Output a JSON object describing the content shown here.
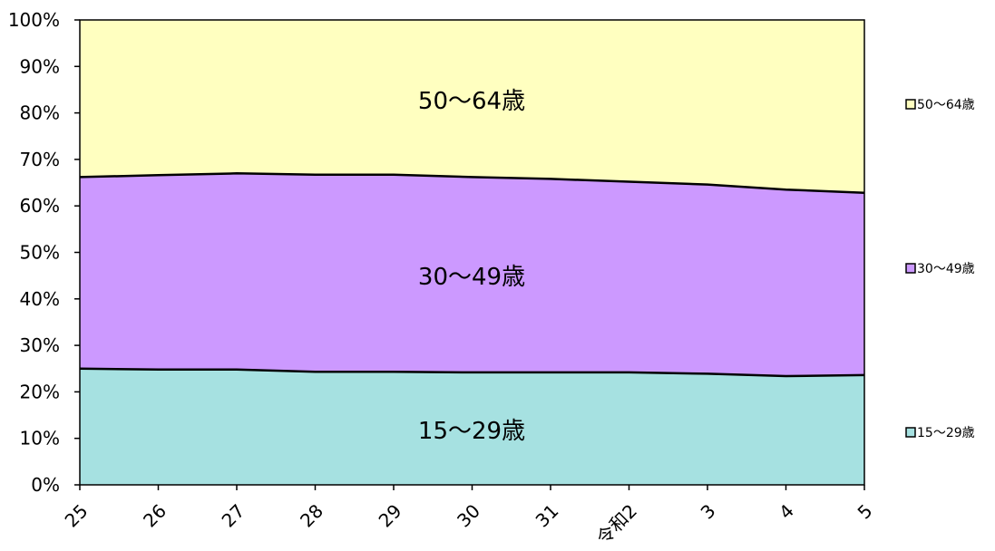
{
  "chart_data": {
    "type": "area",
    "stacked": true,
    "percent": true,
    "categories": [
      "25",
      "26",
      "27",
      "28",
      "29",
      "30",
      "31",
      "令和2",
      "3",
      "4",
      "5"
    ],
    "series": [
      {
        "name": "15～29歳",
        "values": [
          25.0,
          24.8,
          24.8,
          24.3,
          24.3,
          24.2,
          24.2,
          24.2,
          23.9,
          23.4,
          23.6
        ],
        "color": "#a6e1e1"
      },
      {
        "name": "30～49歳",
        "values": [
          41.2,
          41.8,
          42.2,
          42.4,
          42.4,
          42.0,
          41.6,
          41.0,
          40.7,
          40.1,
          39.2
        ],
        "color": "#cc99ff"
      },
      {
        "name": "50～64歳",
        "values": [
          33.8,
          33.4,
          33.0,
          33.3,
          33.3,
          33.8,
          34.2,
          34.8,
          35.4,
          36.5,
          37.2
        ],
        "color": "#ffffc0"
      }
    ],
    "y_ticks": [
      "0%",
      "10%",
      "20%",
      "30%",
      "40%",
      "50%",
      "60%",
      "70%",
      "80%",
      "90%",
      "100%"
    ],
    "ylim": [
      0,
      100
    ],
    "legend_position": "right",
    "legend": [
      "50～64歳",
      "30～49歳",
      "15～29歳"
    ],
    "band_labels": [
      "15～29歳",
      "30～49歳",
      "50～64歳"
    ],
    "title": "",
    "xlabel": "",
    "ylabel": ""
  }
}
